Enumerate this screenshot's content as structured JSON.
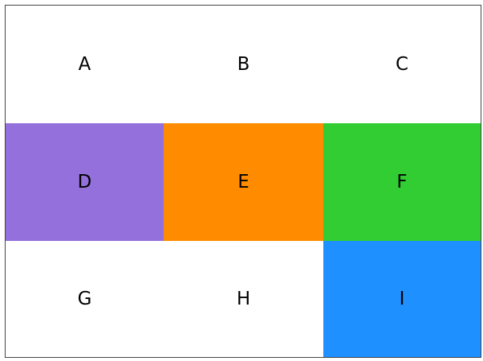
{
  "cells": [
    {
      "label": "A",
      "color": "#ffffff"
    },
    {
      "label": "B",
      "color": "#ffffff"
    },
    {
      "label": "C",
      "color": "#ffffff"
    },
    {
      "label": "D",
      "color": "#9370db"
    },
    {
      "label": "E",
      "color": "#ff8c00"
    },
    {
      "label": "F",
      "color": "#32cd32"
    },
    {
      "label": "G",
      "color": "#ffffff"
    },
    {
      "label": "H",
      "color": "#ffffff"
    },
    {
      "label": "I",
      "color": "#1e90ff"
    }
  ]
}
